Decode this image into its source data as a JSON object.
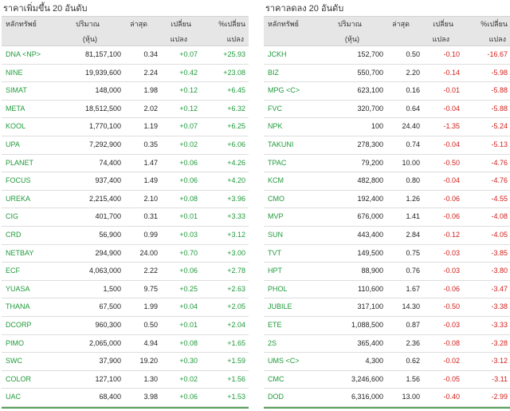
{
  "gainers": {
    "title": "ราคาเพิ่มขึ้น 20 อันดับ",
    "headers": {
      "symbol": "หลักทรัพย์",
      "volume_1": "ปริมาณ",
      "volume_2": "(หุ้น)",
      "last": "ล่าสุด",
      "change_1": "เปลี่ยน",
      "change_2": "แปลง",
      "pct_1": "%เปลี่ยน",
      "pct_2": "แปลง"
    },
    "rows": [
      {
        "symbol": "DNA <NP>",
        "volume": "81,157,100",
        "last": "0.34",
        "change": "+0.07",
        "pct": "+25.93"
      },
      {
        "symbol": "NINE",
        "volume": "19,939,600",
        "last": "2.24",
        "change": "+0.42",
        "pct": "+23.08"
      },
      {
        "symbol": "SIMAT",
        "volume": "148,000",
        "last": "1.98",
        "change": "+0.12",
        "pct": "+6.45"
      },
      {
        "symbol": "META",
        "volume": "18,512,500",
        "last": "2.02",
        "change": "+0.12",
        "pct": "+6.32"
      },
      {
        "symbol": "KOOL",
        "volume": "1,770,100",
        "last": "1.19",
        "change": "+0.07",
        "pct": "+6.25"
      },
      {
        "symbol": "UPA",
        "volume": "7,292,900",
        "last": "0.35",
        "change": "+0.02",
        "pct": "+6.06"
      },
      {
        "symbol": "PLANET",
        "volume": "74,400",
        "last": "1.47",
        "change": "+0.06",
        "pct": "+4.26"
      },
      {
        "symbol": "FOCUS",
        "volume": "937,400",
        "last": "1.49",
        "change": "+0.06",
        "pct": "+4.20"
      },
      {
        "symbol": "UREKA",
        "volume": "2,215,400",
        "last": "2.10",
        "change": "+0.08",
        "pct": "+3.96"
      },
      {
        "symbol": "CIG",
        "volume": "401,700",
        "last": "0.31",
        "change": "+0.01",
        "pct": "+3.33"
      },
      {
        "symbol": "CRD",
        "volume": "56,900",
        "last": "0.99",
        "change": "+0.03",
        "pct": "+3.12"
      },
      {
        "symbol": "NETBAY",
        "volume": "294,900",
        "last": "24.00",
        "change": "+0.70",
        "pct": "+3.00"
      },
      {
        "symbol": "ECF",
        "volume": "4,063,000",
        "last": "2.22",
        "change": "+0.06",
        "pct": "+2.78"
      },
      {
        "symbol": "YUASA",
        "volume": "1,500",
        "last": "9.75",
        "change": "+0.25",
        "pct": "+2.63"
      },
      {
        "symbol": "THANA",
        "volume": "67,500",
        "last": "1.99",
        "change": "+0.04",
        "pct": "+2.05"
      },
      {
        "symbol": "DCORP",
        "volume": "960,300",
        "last": "0.50",
        "change": "+0.01",
        "pct": "+2.04"
      },
      {
        "symbol": "PIMO",
        "volume": "2,065,000",
        "last": "4.94",
        "change": "+0.08",
        "pct": "+1.65"
      },
      {
        "symbol": "SWC",
        "volume": "37,900",
        "last": "19.20",
        "change": "+0.30",
        "pct": "+1.59"
      },
      {
        "symbol": "COLOR",
        "volume": "127,100",
        "last": "1.30",
        "change": "+0.02",
        "pct": "+1.56"
      },
      {
        "symbol": "UAC",
        "volume": "68,400",
        "last": "3.98",
        "change": "+0.06",
        "pct": "+1.53"
      }
    ]
  },
  "losers": {
    "title": "ราคาลดลง 20 อันดับ",
    "headers": {
      "symbol": "หลักทรัพย์",
      "volume_1": "ปริมาณ",
      "volume_2": "(หุ้น)",
      "last": "ล่าสุด",
      "change_1": "เปลี่ยน",
      "change_2": "แปลง",
      "pct_1": "%เปลี่ยน",
      "pct_2": "แปลง"
    },
    "rows": [
      {
        "symbol": "JCKH",
        "volume": "152,700",
        "last": "0.50",
        "change": "-0.10",
        "pct": "-16.67"
      },
      {
        "symbol": "BIZ",
        "volume": "550,700",
        "last": "2.20",
        "change": "-0.14",
        "pct": "-5.98"
      },
      {
        "symbol": "MPG <C>",
        "volume": "623,100",
        "last": "0.16",
        "change": "-0.01",
        "pct": "-5.88"
      },
      {
        "symbol": "FVC",
        "volume": "320,700",
        "last": "0.64",
        "change": "-0.04",
        "pct": "-5.88"
      },
      {
        "symbol": "NPK",
        "volume": "100",
        "last": "24.40",
        "change": "-1.35",
        "pct": "-5.24"
      },
      {
        "symbol": "TAKUNI",
        "volume": "278,300",
        "last": "0.74",
        "change": "-0.04",
        "pct": "-5.13"
      },
      {
        "symbol": "TPAC",
        "volume": "79,200",
        "last": "10.00",
        "change": "-0.50",
        "pct": "-4.76"
      },
      {
        "symbol": "KCM",
        "volume": "482,800",
        "last": "0.80",
        "change": "-0.04",
        "pct": "-4.76"
      },
      {
        "symbol": "CMO",
        "volume": "192,400",
        "last": "1.26",
        "change": "-0.06",
        "pct": "-4.55"
      },
      {
        "symbol": "MVP",
        "volume": "676,000",
        "last": "1.41",
        "change": "-0.06",
        "pct": "-4.08"
      },
      {
        "symbol": "SUN",
        "volume": "443,400",
        "last": "2.84",
        "change": "-0.12",
        "pct": "-4.05"
      },
      {
        "symbol": "TVT",
        "volume": "149,500",
        "last": "0.75",
        "change": "-0.03",
        "pct": "-3.85"
      },
      {
        "symbol": "HPT",
        "volume": "88,900",
        "last": "0.76",
        "change": "-0.03",
        "pct": "-3.80"
      },
      {
        "symbol": "PHOL",
        "volume": "110,600",
        "last": "1.67",
        "change": "-0.06",
        "pct": "-3.47"
      },
      {
        "symbol": "JUBILE",
        "volume": "317,100",
        "last": "14.30",
        "change": "-0.50",
        "pct": "-3.38"
      },
      {
        "symbol": "ETE",
        "volume": "1,088,500",
        "last": "0.87",
        "change": "-0.03",
        "pct": "-3.33"
      },
      {
        "symbol": "2S",
        "volume": "365,400",
        "last": "2.36",
        "change": "-0.08",
        "pct": "-3.28"
      },
      {
        "symbol": "UMS <C>",
        "volume": "4,300",
        "last": "0.62",
        "change": "-0.02",
        "pct": "-3.12"
      },
      {
        "symbol": "CMC",
        "volume": "3,246,600",
        "last": "1.56",
        "change": "-0.05",
        "pct": "-3.11"
      },
      {
        "symbol": "DOD",
        "volume": "6,316,000",
        "last": "13.00",
        "change": "-0.40",
        "pct": "-2.99"
      }
    ]
  },
  "colors": {
    "up": "#1f9a3a",
    "down": "#d0201c",
    "header_bg": "#e6e6e6"
  }
}
